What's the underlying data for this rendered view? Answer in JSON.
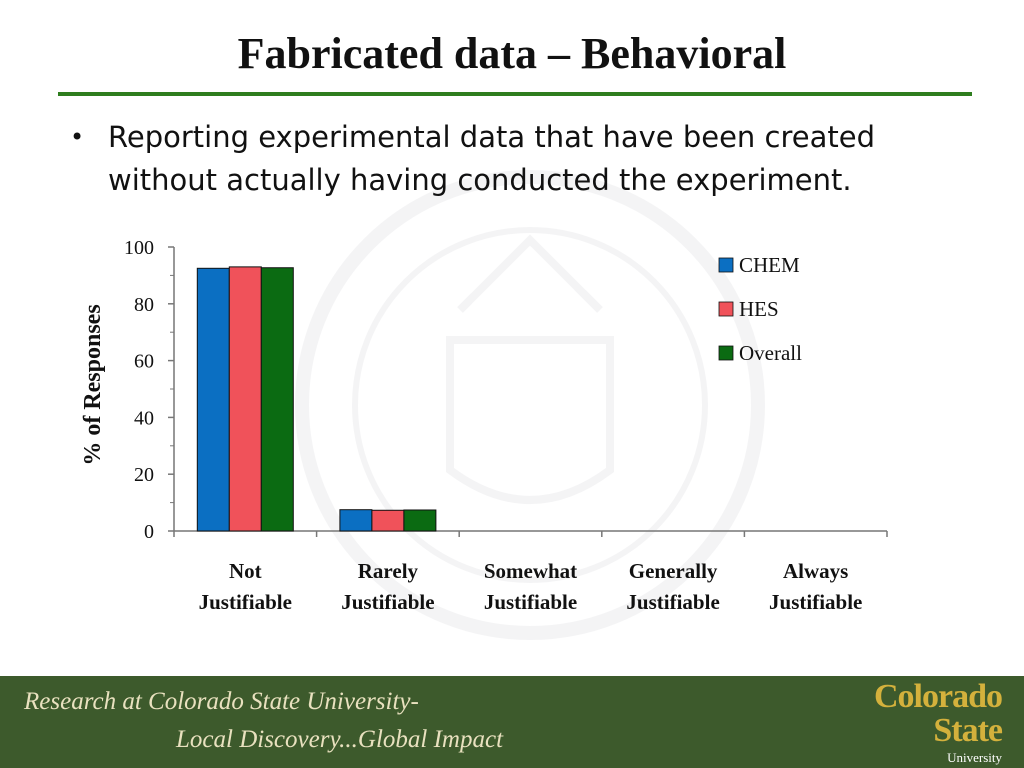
{
  "slide": {
    "title": "Fabricated data – Behavioral",
    "bullet": "Reporting experimental data that have been created without actually having conducted the experiment."
  },
  "colors": {
    "title_rule": "#2e7d1e",
    "footer_bg": "#3d5a2c",
    "footer_text": "#e9e1bf",
    "logo_gold": "#d4b13c"
  },
  "chart_data": {
    "type": "bar",
    "categories": [
      [
        "Not",
        "Justifiable"
      ],
      [
        "Rarely",
        "Justifiable"
      ],
      [
        "Somewhat",
        "Justifiable"
      ],
      [
        "Generally",
        "Justifiable"
      ],
      [
        "Always",
        "Justifiable"
      ]
    ],
    "series": [
      {
        "name": "CHEM",
        "color": "#0b6fc2",
        "values": [
          92.5,
          7.5,
          0,
          0,
          0
        ]
      },
      {
        "name": "HES",
        "color": "#f0525a",
        "values": [
          93,
          7.3,
          0,
          0,
          0
        ]
      },
      {
        "name": "Overall",
        "color": "#0b6b12",
        "values": [
          92.7,
          7.4,
          0,
          0,
          0
        ]
      }
    ],
    "ylabel": "% of Responses",
    "ylim": [
      0,
      100
    ],
    "yticks": [
      "0",
      "20",
      "40",
      "60",
      "80",
      "100"
    ],
    "legend_position": "top-right",
    "grid": false
  },
  "footer": {
    "line1": "Research at Colorado State University-",
    "line2": "Local Discovery...Global Impact"
  },
  "logo": {
    "line1": "Colorado",
    "line2": "State",
    "line3": "University"
  }
}
